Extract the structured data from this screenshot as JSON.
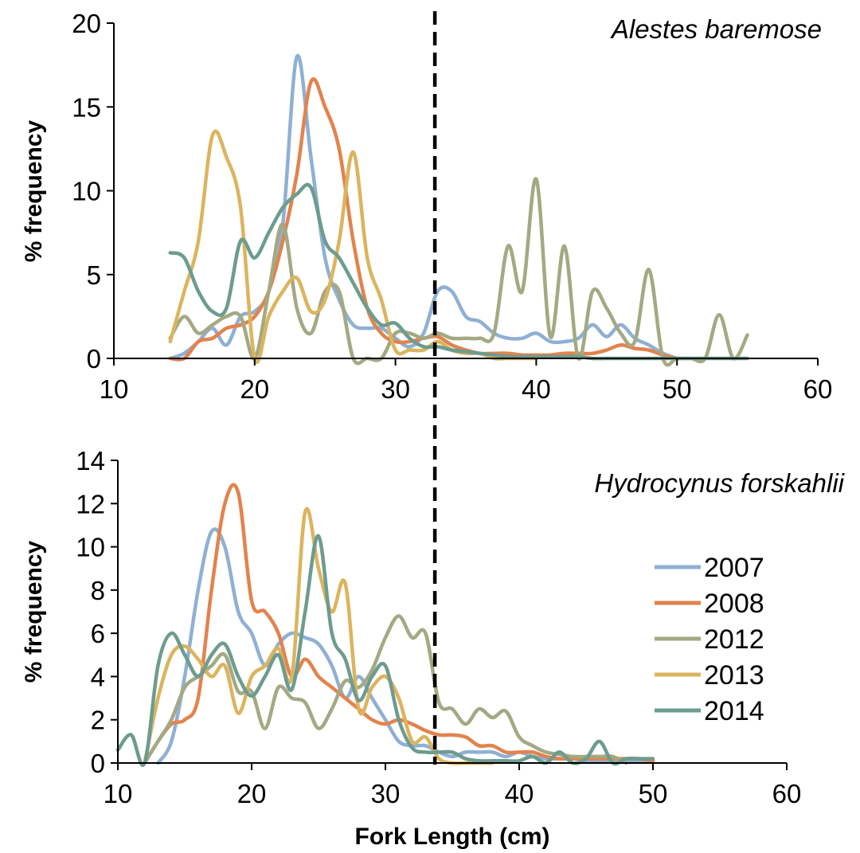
{
  "colors": {
    "2007": "#8fb0d3",
    "2008": "#e2834d",
    "2012": "#a3a982",
    "2013": "#dcb45e",
    "2014": "#6d9c8f",
    "axis": "#000000",
    "cutoff": "#000000"
  },
  "legend": {
    "items": [
      "2007",
      "2008",
      "2012",
      "2013",
      "2014"
    ],
    "placement": "right of bottom panel"
  },
  "shared": {
    "xlabel": "Fork Length (cm)",
    "cutoff_x": 32.8
  },
  "chart_data": [
    {
      "type": "line",
      "title": "Alestes baremose",
      "xlabel": "",
      "ylabel": "% frequency",
      "xlim": [
        10,
        60
      ],
      "ylim": [
        0,
        20
      ],
      "xticks": [
        10,
        20,
        30,
        40,
        50,
        60
      ],
      "yticks": [
        0,
        5,
        10,
        15,
        20
      ],
      "cutoff_x": 32.8,
      "series": [
        {
          "name": "2007",
          "x": [
            14,
            15,
            16,
            17,
            18,
            19,
            20,
            21,
            22,
            23,
            24,
            25,
            26,
            27,
            28,
            29,
            30,
            31,
            32,
            33,
            34,
            35,
            36,
            37,
            38,
            39,
            40,
            41,
            42,
            43,
            44,
            45,
            46,
            47,
            48,
            49,
            50
          ],
          "y": [
            0,
            0.3,
            1,
            1.8,
            0.8,
            2.5,
            2.8,
            4,
            8,
            18,
            12,
            6,
            3.5,
            2,
            1.8,
            1.8,
            1.2,
            0.7,
            1.5,
            4,
            4,
            2.5,
            2.2,
            1.5,
            1.2,
            1.2,
            1.5,
            1,
            1,
            1.2,
            2,
            1.3,
            2,
            1.2,
            0.8,
            0.3,
            0
          ]
        },
        {
          "name": "2008",
          "x": [
            14,
            15,
            16,
            17,
            18,
            19,
            20,
            21,
            22,
            23,
            24,
            25,
            26,
            27,
            28,
            29,
            30,
            31,
            32,
            33,
            34,
            35,
            36,
            37,
            38,
            39,
            40,
            41,
            42,
            43,
            44,
            45,
            46,
            47,
            48,
            49,
            50
          ],
          "y": [
            0,
            0,
            1,
            1.2,
            1.8,
            2,
            2.5,
            4,
            7,
            11,
            16.5,
            15,
            12.5,
            7,
            3,
            1.5,
            1,
            1,
            1.2,
            1.3,
            0.8,
            0.5,
            0.3,
            0.3,
            0.3,
            0.2,
            0.2,
            0.2,
            0.3,
            0.3,
            0.3,
            0.5,
            0.8,
            0.6,
            0.5,
            0.2,
            0
          ]
        },
        {
          "name": "2012",
          "x": [
            14,
            15,
            16,
            17,
            18,
            19,
            20,
            21,
            22,
            23,
            24,
            25,
            26,
            27,
            28,
            29,
            30,
            31,
            32,
            33,
            34,
            35,
            36,
            37,
            38,
            39,
            40,
            41,
            42,
            43,
            44,
            45,
            46,
            47,
            48,
            49,
            50,
            51,
            52,
            53,
            54,
            55
          ],
          "y": [
            1.2,
            2.5,
            1.5,
            2,
            2.5,
            2.5,
            0,
            4,
            8,
            3,
            1.5,
            4,
            4,
            0,
            0,
            0,
            1.5,
            1.5,
            1.2,
            1.5,
            1.2,
            1.2,
            1.2,
            1.5,
            6.7,
            4,
            10.7,
            1.3,
            6.7,
            0,
            4,
            3,
            1.5,
            1,
            5.3,
            0,
            0,
            0,
            0,
            2.6,
            0,
            1.4
          ]
        },
        {
          "name": "2013",
          "x": [
            14,
            15,
            16,
            17,
            18,
            19,
            20,
            21,
            22,
            23,
            24,
            25,
            26,
            27,
            28,
            29,
            30,
            31,
            32,
            33,
            34,
            35,
            36,
            37,
            38,
            39,
            40
          ],
          "y": [
            1,
            4,
            7,
            13.3,
            12,
            9,
            0,
            2.5,
            4,
            4.8,
            2.8,
            3.5,
            7,
            12.3,
            6,
            3.5,
            0.5,
            0.5,
            0.5,
            1,
            0.5,
            0.3,
            0.3,
            0,
            0,
            0,
            0
          ]
        },
        {
          "name": "2014",
          "x": [
            14,
            15,
            16,
            17,
            18,
            19,
            20,
            21,
            22,
            23,
            24,
            25,
            26,
            27,
            28,
            29,
            30,
            31,
            32,
            33,
            34,
            35,
            36,
            37,
            38,
            39,
            40,
            41,
            42,
            43,
            44,
            45,
            46,
            47,
            48,
            49,
            50,
            51,
            52,
            53,
            54,
            55
          ],
          "y": [
            6.3,
            6,
            4,
            2.8,
            3,
            7,
            6,
            7.5,
            9,
            9.8,
            10.2,
            7,
            6,
            4.5,
            3,
            2,
            2.1,
            1.2,
            0.7,
            0.7,
            0.5,
            0.4,
            0.3,
            0.2,
            0.1,
            0.1,
            0.1,
            0.1,
            0.1,
            0.1,
            0,
            0,
            0,
            0,
            0,
            0,
            0,
            0,
            0,
            0,
            0,
            0
          ]
        }
      ]
    },
    {
      "type": "line",
      "title": "Hydrocynus forskahlii",
      "xlabel": "Fork Length (cm)",
      "ylabel": "% frequency",
      "xlim": [
        10,
        60
      ],
      "ylim": [
        0,
        14
      ],
      "xticks": [
        10,
        20,
        30,
        40,
        50,
        60
      ],
      "yticks": [
        0,
        2,
        4,
        6,
        8,
        10,
        12,
        14
      ],
      "cutoff_x": 32.8,
      "series": [
        {
          "name": "2007",
          "x": [
            13,
            14,
            15,
            16,
            17,
            18,
            19,
            20,
            21,
            22,
            23,
            24,
            25,
            26,
            27,
            28,
            29,
            30,
            31,
            32,
            33,
            34,
            35,
            36,
            37,
            38,
            39,
            40,
            41,
            42,
            43,
            44,
            45,
            46,
            47,
            48,
            49,
            50
          ],
          "y": [
            0,
            1,
            4,
            8,
            10.7,
            10,
            7,
            6,
            4.5,
            5.5,
            6,
            5.8,
            5.5,
            4.5,
            3,
            4,
            3,
            2,
            1,
            0.8,
            0.8,
            0.5,
            0.3,
            0.5,
            0.5,
            0.5,
            0.3,
            0.5,
            0.3,
            0.2,
            0.2,
            0.2,
            0.1,
            0.1,
            0.1,
            0.1,
            0.1,
            0.1
          ]
        },
        {
          "name": "2008",
          "x": [
            12,
            13,
            14,
            15,
            16,
            17,
            18,
            19,
            20,
            21,
            22,
            23,
            24,
            25,
            26,
            27,
            28,
            29,
            30,
            31,
            32,
            33,
            34,
            35,
            36,
            37,
            38,
            39,
            40,
            41,
            42,
            43,
            44,
            45,
            46,
            47,
            48,
            49,
            50
          ],
          "y": [
            0,
            1,
            1.8,
            2,
            3,
            8,
            12,
            12.5,
            7.5,
            7,
            6,
            4,
            4.8,
            4,
            3.5,
            3,
            2.5,
            2,
            1.8,
            2,
            1.8,
            1.5,
            1.3,
            1.3,
            1.2,
            0.8,
            0.8,
            0.5,
            0.5,
            0.5,
            0.3,
            0.2,
            0.2,
            0.2,
            0.2,
            0.2,
            0.2,
            0.2,
            0.1
          ]
        },
        {
          "name": "2012",
          "x": [
            12,
            13,
            14,
            15,
            16,
            17,
            18,
            19,
            20,
            21,
            22,
            23,
            24,
            25,
            26,
            27,
            28,
            29,
            30,
            31,
            32,
            33,
            34,
            35,
            36,
            37,
            38,
            39,
            40,
            41,
            42,
            43,
            44,
            45,
            46,
            47,
            48
          ],
          "y": [
            0,
            1,
            2,
            3.5,
            4,
            4.5,
            5,
            3.3,
            3.3,
            1.6,
            3.5,
            3,
            2.8,
            1.6,
            2.5,
            3.8,
            3.5,
            4.3,
            5.8,
            6.8,
            5.8,
            6,
            2.8,
            2.5,
            1.8,
            2.5,
            2.1,
            2.4,
            1.2,
            0.8,
            0.5,
            0.4,
            0.3,
            0.3,
            0.3,
            0.3,
            0
          ]
        },
        {
          "name": "2013",
          "x": [
            12,
            13,
            14,
            15,
            16,
            17,
            18,
            19,
            20,
            21,
            22,
            23,
            24,
            25,
            26,
            27,
            28,
            29,
            30,
            31,
            32,
            33,
            34,
            35,
            36,
            37,
            38
          ],
          "y": [
            0,
            3,
            5,
            5.4,
            4.8,
            4,
            4.5,
            2.3,
            4,
            4.5,
            5.3,
            4,
            11.6,
            9,
            7,
            8.3,
            2.5,
            3.5,
            4,
            3,
            1,
            1.2,
            0.2,
            0,
            0,
            0,
            0
          ]
        },
        {
          "name": "2014",
          "x": [
            10,
            11,
            12,
            13,
            14,
            15,
            16,
            17,
            18,
            19,
            20,
            21,
            22,
            23,
            24,
            25,
            26,
            27,
            28,
            29,
            30,
            31,
            32,
            33,
            34,
            35,
            36,
            37,
            38,
            39,
            40,
            41,
            42,
            43,
            44,
            45,
            46,
            47,
            48,
            49,
            50
          ],
          "y": [
            0.6,
            1.3,
            0,
            4.5,
            6,
            5,
            4,
            5,
            5.5,
            4,
            3.1,
            4,
            5,
            3.4,
            7,
            10.5,
            6,
            4.8,
            2.9,
            4,
            4.5,
            2,
            0.7,
            0.5,
            0.5,
            0.5,
            0.2,
            0.1,
            0.1,
            0.1,
            0.1,
            0.3,
            0,
            0.5,
            0,
            0.2,
            1,
            0,
            0.2,
            0.2,
            0.2
          ]
        }
      ]
    }
  ]
}
